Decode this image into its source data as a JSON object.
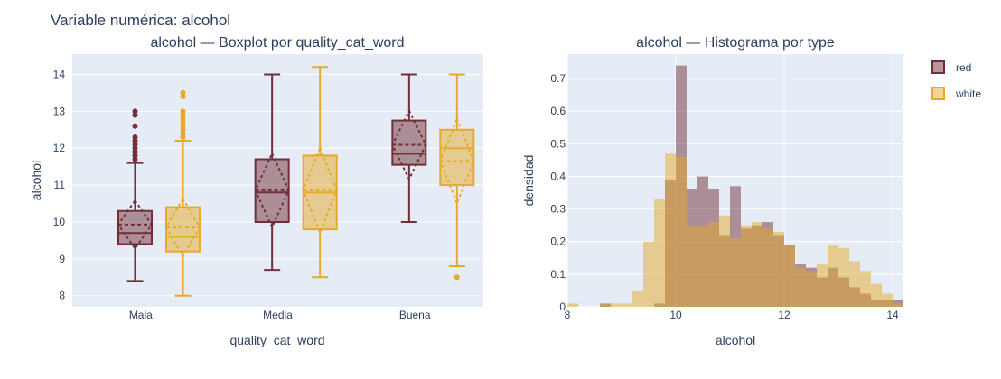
{
  "title": "Variable numérica: alcohol",
  "colors": {
    "red": "#722f37",
    "white": "#e6a92a",
    "plot_bg": "#e5ecf6",
    "grid": "#ffffff"
  },
  "chart_data": [
    {
      "type": "box",
      "title": "alcohol — Boxplot por quality_cat_word",
      "xlabel": "quality_cat_word",
      "ylabel": "alcohol",
      "categories": [
        "Mala",
        "Media",
        "Buena"
      ],
      "ylim": [
        7.7,
        14.55
      ],
      "yticks": [
        8,
        9,
        10,
        11,
        12,
        13,
        14
      ],
      "boxmean": "sd",
      "series": [
        {
          "name": "red",
          "boxes": [
            {
              "min": 8.4,
              "q1": 9.4,
              "median": 9.7,
              "q3": 10.3,
              "max": 11.6,
              "mean": 9.93,
              "sd": 0.65,
              "outliers": [
                11.7,
                11.8,
                11.9,
                12.0,
                12.1,
                12.2,
                12.3,
                12.6,
                12.9,
                13.0
              ]
            },
            {
              "min": 8.7,
              "q1": 10.0,
              "median": 10.8,
              "q3": 11.7,
              "max": 14.0,
              "mean": 10.86,
              "sd": 1.0,
              "outliers": []
            },
            {
              "min": 10.0,
              "q1": 11.55,
              "median": 11.85,
              "q3": 12.75,
              "max": 14.0,
              "mean": 12.09,
              "sd": 0.93,
              "outliers": []
            }
          ]
        },
        {
          "name": "white",
          "boxes": [
            {
              "min": 8.0,
              "q1": 9.2,
              "median": 9.6,
              "q3": 10.4,
              "max": 12.2,
              "mean": 9.85,
              "sd": 0.78,
              "outliers": [
                12.3,
                12.4,
                12.5,
                12.6,
                12.7,
                12.8,
                12.9,
                13.0,
                13.4,
                13.5
              ]
            },
            {
              "min": 8.5,
              "q1": 9.8,
              "median": 10.8,
              "q3": 11.8,
              "max": 14.2,
              "mean": 10.86,
              "sd": 1.15,
              "outliers": []
            },
            {
              "min": 8.8,
              "q1": 11.0,
              "median": 12.0,
              "q3": 12.5,
              "max": 14.0,
              "mean": 11.65,
              "sd": 1.15,
              "outliers": [
                8.5
              ]
            }
          ]
        }
      ]
    },
    {
      "type": "histogram",
      "title": "alcohol — Histograma por type",
      "xlabel": "alcohol",
      "ylabel": "densidad",
      "xlim": [
        8,
        14.2
      ],
      "ylim": [
        0,
        0.775
      ],
      "xticks": [
        8,
        10,
        12,
        14
      ],
      "yticks": [
        0,
        0.1,
        0.2,
        0.3,
        0.4,
        0.5,
        0.6,
        0.7
      ],
      "bin_edges_start": 8.0,
      "bin_width": 0.2,
      "barmode": "overlay",
      "legend": "top-right",
      "series": [
        {
          "name": "red",
          "values": [
            0,
            0,
            0,
            0.01,
            0,
            0,
            0,
            0,
            0.01,
            0.39,
            0.74,
            0.36,
            0.4,
            0.36,
            0.22,
            0.37,
            0.24,
            0.25,
            0.26,
            0.22,
            0.19,
            0.13,
            0.12,
            0.09,
            0.12,
            0.09,
            0.06,
            0.04,
            0.02,
            0.02,
            0.02
          ]
        },
        {
          "name": "white",
          "values": [
            0.01,
            0,
            0,
            0.01,
            0.01,
            0.01,
            0.05,
            0.2,
            0.33,
            0.47,
            0.46,
            0.25,
            0.25,
            0.26,
            0.28,
            0.21,
            0.25,
            0.26,
            0.24,
            0.23,
            0.19,
            0.12,
            0.11,
            0.13,
            0.19,
            0.18,
            0.14,
            0.11,
            0.07,
            0.04,
            0.01
          ]
        }
      ]
    }
  ]
}
